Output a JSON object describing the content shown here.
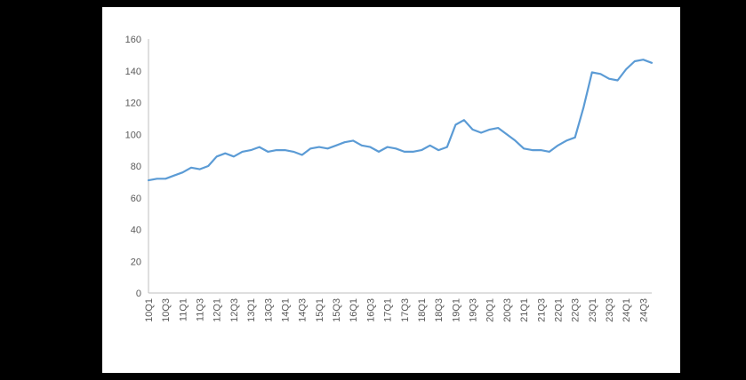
{
  "page": {
    "background_color": "#000000",
    "panel_color": "#ffffff"
  },
  "chart_data": {
    "type": "line",
    "title": "",
    "xlabel": "",
    "ylabel": "",
    "grid": false,
    "legend": "none",
    "ylim": [
      0,
      160
    ],
    "ytick_step": 20,
    "xtick_every": 2,
    "line_color": "#5B9BD5",
    "axis_color": "#BFBFBF",
    "text_color": "#595959",
    "categories": [
      "10Q1",
      "10Q2",
      "10Q3",
      "10Q4",
      "11Q1",
      "11Q2",
      "11Q3",
      "11Q4",
      "12Q1",
      "12Q2",
      "12Q3",
      "12Q4",
      "13Q1",
      "13Q2",
      "13Q3",
      "13Q4",
      "14Q1",
      "14Q2",
      "14Q3",
      "14Q4",
      "15Q1",
      "15Q2",
      "15Q3",
      "15Q4",
      "16Q1",
      "16Q2",
      "16Q3",
      "16Q4",
      "17Q1",
      "17Q2",
      "17Q3",
      "17Q4",
      "18Q1",
      "18Q2",
      "18Q3",
      "18Q4",
      "19Q1",
      "19Q2",
      "19Q3",
      "19Q4",
      "20Q1",
      "20Q2",
      "20Q3",
      "20Q4",
      "21Q1",
      "21Q2",
      "21Q3",
      "21Q4",
      "22Q1",
      "22Q2",
      "22Q3",
      "22Q4",
      "23Q1",
      "23Q2",
      "23Q3",
      "23Q4",
      "24Q1",
      "24Q2",
      "24Q3",
      "24Q4"
    ],
    "values": [
      71,
      72,
      72,
      74,
      76,
      79,
      78,
      80,
      86,
      88,
      86,
      89,
      90,
      92,
      89,
      90,
      90,
      89,
      87,
      91,
      92,
      91,
      93,
      95,
      96,
      93,
      92,
      89,
      92,
      91,
      89,
      89,
      90,
      93,
      90,
      92,
      106,
      109,
      103,
      101,
      103,
      104,
      100,
      96,
      91,
      90,
      90,
      89,
      93,
      96,
      98,
      117,
      139,
      138,
      135,
      134,
      141,
      146,
      147,
      145
    ]
  }
}
